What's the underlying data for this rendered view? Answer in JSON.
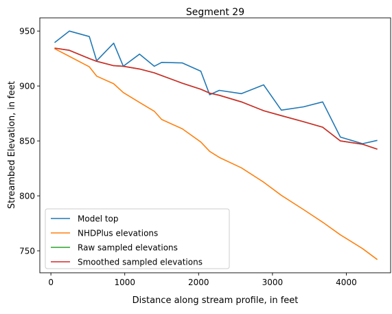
{
  "chart_data": {
    "type": "line",
    "title": "Segment 29",
    "xlabel": "Distance along stream profile, in feet",
    "ylabel": "Streambed Elevation, in feet",
    "xlim": [
      -150,
      4600
    ],
    "ylim": [
      730,
      962
    ],
    "x_ticks": [
      0,
      1000,
      2000,
      3000,
      4000
    ],
    "x_tick_labels": [
      "0",
      "1000",
      "2000",
      "3000",
      "4000"
    ],
    "y_ticks": [
      750,
      800,
      850,
      900,
      950
    ],
    "y_tick_labels": [
      "750",
      "800",
      "850",
      "900",
      "950"
    ],
    "grid": false,
    "legend_position": "lower-left",
    "series": [
      {
        "name": "Model top",
        "color": "#1f77b4",
        "points": [
          [
            50,
            939.5
          ],
          [
            250,
            950
          ],
          [
            520,
            945
          ],
          [
            620,
            923
          ],
          [
            850,
            939
          ],
          [
            980,
            918
          ],
          [
            1200,
            929
          ],
          [
            1400,
            918
          ],
          [
            1500,
            921.5
          ],
          [
            1780,
            921
          ],
          [
            2030,
            913.5
          ],
          [
            2150,
            892
          ],
          [
            2280,
            896
          ],
          [
            2580,
            893
          ],
          [
            2880,
            901
          ],
          [
            3120,
            878
          ],
          [
            3420,
            881
          ],
          [
            3680,
            885.5
          ],
          [
            3920,
            853.5
          ],
          [
            4220,
            847.5
          ],
          [
            4420,
            850.5
          ]
        ]
      },
      {
        "name": "NHDPlus elevations",
        "color": "#ff7f0e",
        "points": [
          [
            50,
            934
          ],
          [
            250,
            927
          ],
          [
            520,
            917.5
          ],
          [
            620,
            909
          ],
          [
            850,
            902
          ],
          [
            980,
            894
          ],
          [
            1200,
            885
          ],
          [
            1400,
            877
          ],
          [
            1500,
            869.5
          ],
          [
            1780,
            861
          ],
          [
            2030,
            849
          ],
          [
            2150,
            840.5
          ],
          [
            2280,
            835
          ],
          [
            2580,
            825.5
          ],
          [
            2880,
            812.5
          ],
          [
            3120,
            800.5
          ],
          [
            3420,
            787.5
          ],
          [
            3680,
            776
          ],
          [
            3920,
            764.5
          ],
          [
            4220,
            752
          ],
          [
            4420,
            742
          ]
        ]
      },
      {
        "name": "Raw sampled elevations",
        "color": "#2ca02c",
        "points": [
          [
            50,
            934.5
          ],
          [
            250,
            932.5
          ],
          [
            520,
            925
          ],
          [
            620,
            922.5
          ],
          [
            850,
            918.5
          ],
          [
            980,
            918
          ],
          [
            1200,
            915.5
          ],
          [
            1400,
            912
          ],
          [
            1500,
            909.5
          ],
          [
            1780,
            902.5
          ],
          [
            2030,
            897
          ],
          [
            2150,
            893.5
          ],
          [
            2280,
            891.5
          ],
          [
            2580,
            885.5
          ],
          [
            2880,
            877.5
          ],
          [
            3120,
            873
          ],
          [
            3420,
            867.5
          ],
          [
            3680,
            862.5
          ],
          [
            3920,
            850
          ],
          [
            4220,
            847
          ],
          [
            4420,
            842.5
          ]
        ]
      },
      {
        "name": "Smoothed sampled elevations",
        "color": "#d62728",
        "points": [
          [
            50,
            934.5
          ],
          [
            250,
            932.5
          ],
          [
            520,
            925
          ],
          [
            620,
            922.5
          ],
          [
            850,
            918.5
          ],
          [
            980,
            918
          ],
          [
            1200,
            915.5
          ],
          [
            1400,
            912
          ],
          [
            1500,
            909.5
          ],
          [
            1780,
            902.5
          ],
          [
            2030,
            897
          ],
          [
            2150,
            893.5
          ],
          [
            2280,
            891.5
          ],
          [
            2580,
            885.5
          ],
          [
            2880,
            877.5
          ],
          [
            3120,
            873
          ],
          [
            3420,
            867.5
          ],
          [
            3680,
            862.5
          ],
          [
            3920,
            850
          ],
          [
            4220,
            847
          ],
          [
            4420,
            842.5
          ]
        ]
      }
    ]
  }
}
